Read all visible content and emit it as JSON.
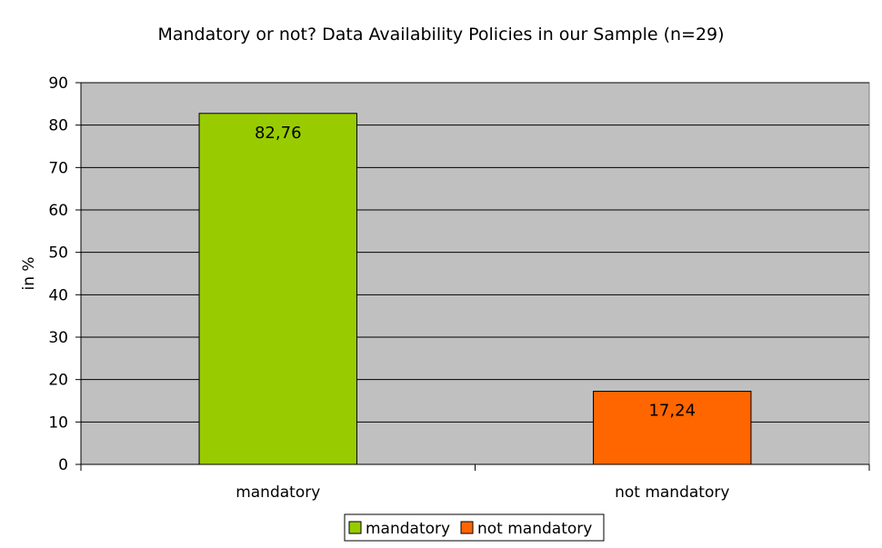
{
  "chart_data": {
    "type": "bar",
    "title": "Mandatory or not? Data Availability Policies in our Sample (n=29)",
    "xlabel": "",
    "ylabel": "in %",
    "ylim": [
      0,
      90
    ],
    "yticks": [
      "0",
      "10",
      "20",
      "30",
      "40",
      "50",
      "60",
      "70",
      "80",
      "90"
    ],
    "categories": [
      "mandatory",
      "not mandatory"
    ],
    "values": [
      82.76,
      17.24
    ],
    "value_labels": [
      "82,76",
      "17,24"
    ],
    "colors": [
      "#99CC00",
      "#FF6600"
    ],
    "plot_background": "#C0C0C0",
    "grid": true,
    "legend": {
      "placement": "bottom",
      "entries": [
        {
          "label": "mandatory",
          "color": "#99CC00"
        },
        {
          "label": "not mandatory",
          "color": "#FF6600"
        }
      ]
    }
  }
}
